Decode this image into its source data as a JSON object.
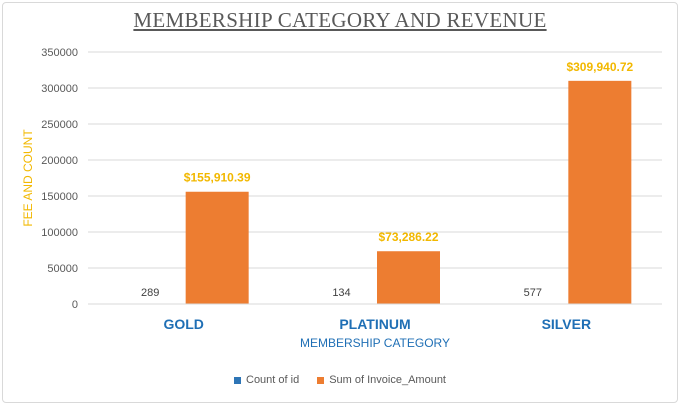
{
  "chart_data": {
    "type": "bar",
    "title": "MEMBERSHIP CATEGORY AND REVENUE",
    "xlabel": "MEMBERSHIP CATEGORY",
    "ylabel": "FEE AND COUNT",
    "categories": [
      "GOLD",
      "PLATINUM",
      "SILVER"
    ],
    "ylim": [
      0,
      350000
    ],
    "yticks": [
      "0",
      "50000",
      "100000",
      "150000",
      "200000",
      "250000",
      "300000",
      "350000"
    ],
    "grid": true,
    "legend_position": "bottom",
    "series": [
      {
        "name": "Count of id",
        "color": "#2e75b6",
        "values": [
          289,
          134,
          577
        ],
        "labels": [
          "289",
          "134",
          "577"
        ]
      },
      {
        "name": "Sum of Invoice_Amount",
        "color": "#ed7d31",
        "values": [
          155910.39,
          73286.22,
          309940.72
        ],
        "labels": [
          "$155,910.39",
          "$73,286.22",
          "$309,940.72"
        ]
      }
    ]
  }
}
